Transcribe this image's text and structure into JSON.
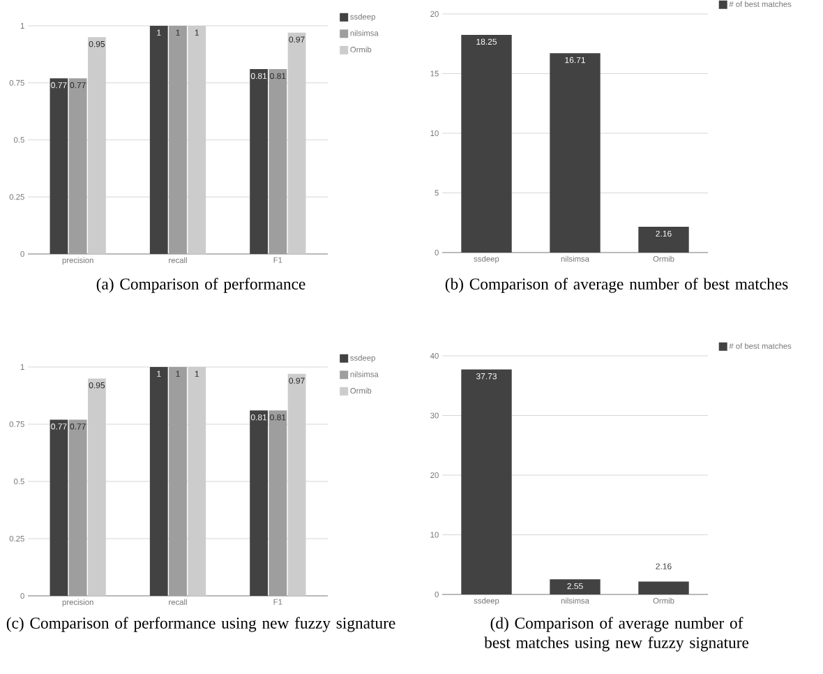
{
  "chart_data": [
    {
      "type": "bar",
      "title": "(a) Comparison of performance",
      "categories": [
        "precision",
        "recall",
        "F1"
      ],
      "series": [
        {
          "name": "ssdeep",
          "color": "#424242",
          "values": [
            0.77,
            1,
            0.81
          ]
        },
        {
          "name": "nilsimsa",
          "color": "#9e9e9e",
          "values": [
            0.77,
            1,
            0.81
          ]
        },
        {
          "name": "Ormib",
          "color": "#cccccc",
          "values": [
            0.95,
            1,
            0.97
          ]
        }
      ],
      "ylim": [
        0,
        1
      ],
      "yticks": [
        0,
        0.25,
        0.5,
        0.75,
        1
      ],
      "grid": "y",
      "legend": "right",
      "data_labels": true
    },
    {
      "type": "bar",
      "title": "(b) Comparison of average number of best matches",
      "categories": [
        "ssdeep",
        "nilsimsa",
        "Ormib"
      ],
      "series": [
        {
          "name": "# of best matches",
          "color": "#424242",
          "values": [
            18.25,
            16.71,
            2.16
          ]
        }
      ],
      "ylim": [
        0,
        20
      ],
      "yticks": [
        0,
        5,
        10,
        15,
        20
      ],
      "grid": "y",
      "legend": "right",
      "data_labels": true
    },
    {
      "type": "bar",
      "title": "(c) Comparison of performance using new fuzzy signature",
      "categories": [
        "precision",
        "recall",
        "F1"
      ],
      "series": [
        {
          "name": "ssdeep",
          "color": "#424242",
          "values": [
            0.77,
            1,
            0.81
          ]
        },
        {
          "name": "nilsimsa",
          "color": "#9e9e9e",
          "values": [
            0.77,
            1,
            0.81
          ]
        },
        {
          "name": "Ormib",
          "color": "#cccccc",
          "values": [
            0.95,
            1,
            0.97
          ]
        }
      ],
      "ylim": [
        0,
        1
      ],
      "yticks": [
        0,
        0.25,
        0.5,
        0.75,
        1
      ],
      "grid": "y",
      "legend": "right",
      "data_labels": true
    },
    {
      "type": "bar",
      "title": "(d) Comparison of average number of best matches using new fuzzy signature",
      "categories": [
        "ssdeep",
        "nilsimsa",
        "Ormib"
      ],
      "series": [
        {
          "name": "# of best matches",
          "color": "#424242",
          "values": [
            37.73,
            2.55,
            2.16
          ]
        }
      ],
      "ylim": [
        0,
        40
      ],
      "yticks": [
        0,
        10,
        20,
        30,
        40
      ],
      "grid": "y",
      "legend": "right",
      "data_labels": true
    }
  ]
}
